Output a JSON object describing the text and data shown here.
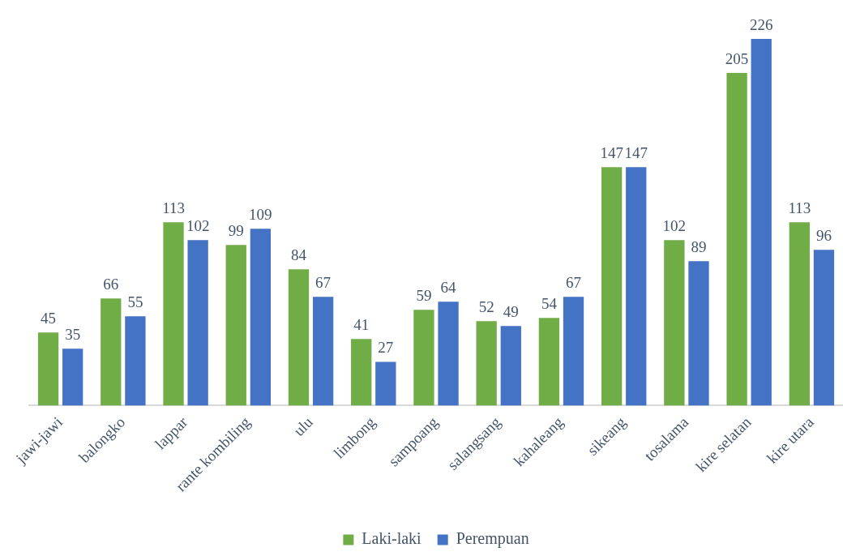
{
  "chart_data": {
    "type": "bar",
    "categories": [
      "jawi-jawi",
      "balongko",
      "lappar",
      "rante kombiling",
      "ulu",
      "limbong",
      "sampoang",
      "salangsang",
      "kahaleang",
      "sikeang",
      "tosalama",
      "kire selatan",
      "kire utara"
    ],
    "series": [
      {
        "name": "Laki-laki",
        "color": "#70ad47",
        "values": [
          45,
          66,
          113,
          99,
          84,
          41,
          59,
          52,
          54,
          147,
          102,
          205,
          113
        ]
      },
      {
        "name": "Perempuan",
        "color": "#4472c4",
        "values": [
          35,
          55,
          102,
          109,
          67,
          27,
          64,
          49,
          67,
          147,
          89,
          226,
          96
        ]
      }
    ],
    "ylim": [
      0,
      250
    ],
    "tick_labels": "x",
    "data_labels": true,
    "legend": "bottom"
  }
}
